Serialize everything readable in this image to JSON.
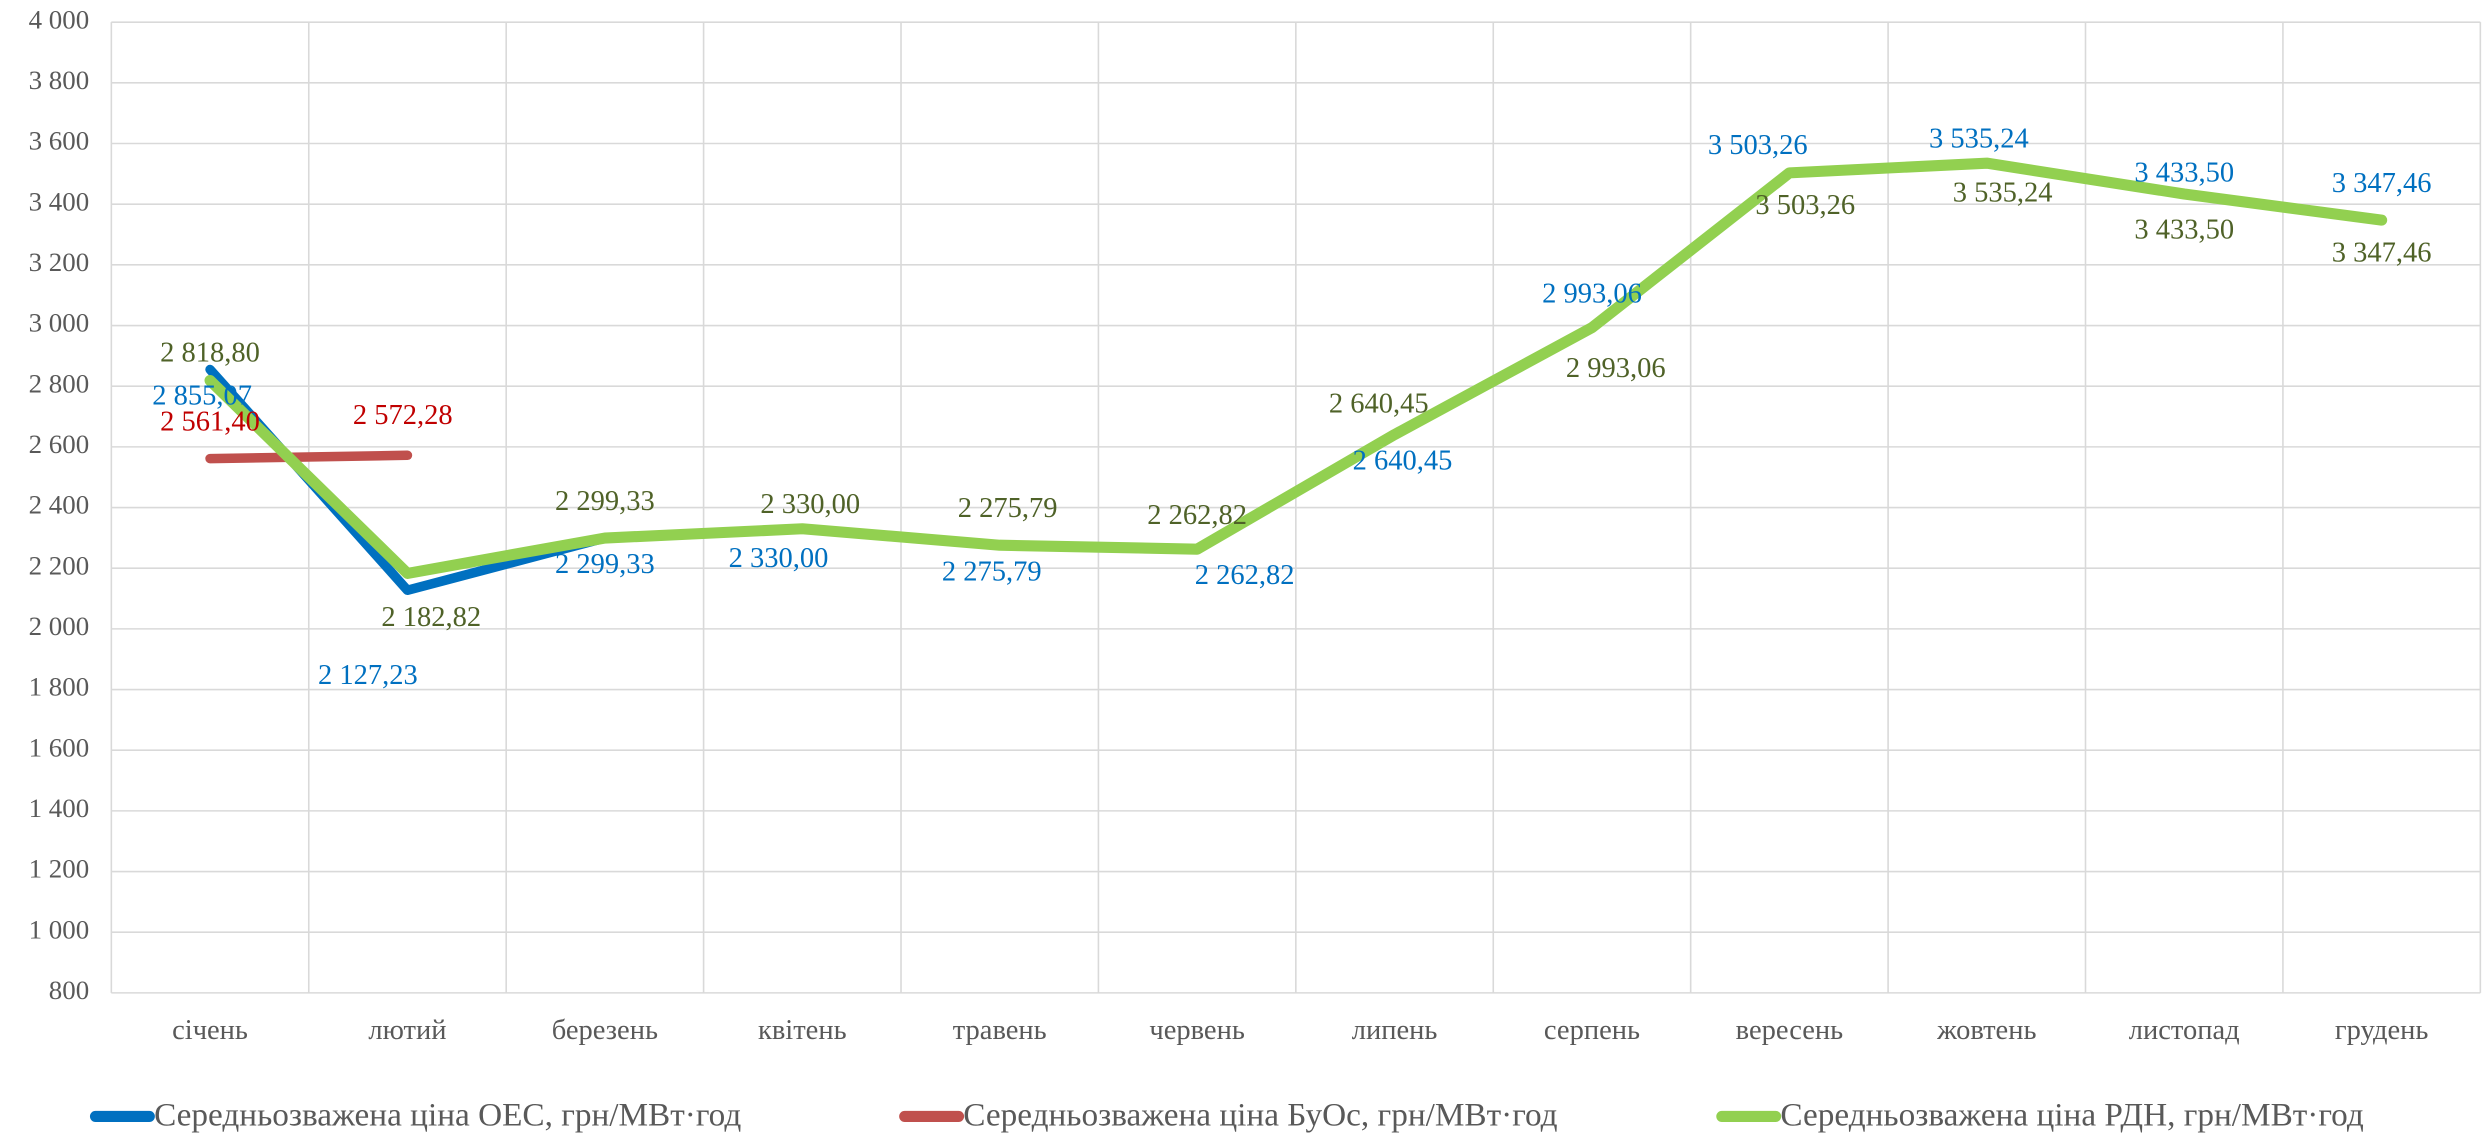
{
  "chart_data": {
    "type": "line",
    "categories": [
      "січень",
      "лютий",
      "березень",
      "квітень",
      "травень",
      "червень",
      "липень",
      "серпень",
      "вересень",
      "жовтень",
      "листопад",
      "грудень"
    ],
    "series": [
      {
        "name": "Середньозважена ціна ОЕС, грн/МВт·год",
        "color": "#0070c0",
        "values": [
          2855.07,
          2127.23,
          2299.33,
          2330.0,
          2275.79,
          2262.82,
          2640.45,
          2993.06,
          3503.26,
          3535.24,
          3433.5,
          3347.46
        ],
        "value_labels": [
          "2 855,07",
          "2 127,23",
          "2 299,33",
          "2 330,00",
          "2 275,79",
          "2 262,82",
          "2 640,45",
          "2 993,06",
          "3 503,26",
          "3 535,24",
          "3 433,50",
          "3 347,46"
        ]
      },
      {
        "name": "Середньозважена ціна БуОс, грн/МВт·год",
        "color": "#c0504d",
        "values": [
          2561.4,
          2572.28,
          null,
          null,
          null,
          null,
          null,
          null,
          null,
          null,
          null,
          null
        ],
        "value_labels": [
          "2 561,40",
          "2 572,28",
          null,
          null,
          null,
          null,
          null,
          null,
          null,
          null,
          null,
          null
        ]
      },
      {
        "name": "Середньозважена ціна РДН, грн/МВт·год",
        "color": "#92d050",
        "values": [
          2818.8,
          2182.82,
          2299.33,
          2330.0,
          2275.79,
          2262.82,
          2640.45,
          2993.06,
          3503.26,
          3535.24,
          3433.5,
          3347.46
        ],
        "value_labels": [
          "2 818,80",
          "2 182,82",
          "2 299,33",
          "2 330,00",
          "2 275,79",
          "2 262,82",
          "2 640,45",
          "2 993,06",
          "3 503,26",
          "3 535,24",
          "3 433,50",
          "3 347,46"
        ]
      }
    ],
    "ylim": [
      800,
      4000
    ],
    "yticks": [
      800,
      {
        "value": 1000,
        "label": "1 000"
      },
      {
        "value": 1200,
        "label": "1 200"
      },
      {
        "value": 1400,
        "label": "1 400"
      },
      {
        "value": 1600,
        "label": "1 600"
      },
      {
        "value": 1800,
        "label": "1 800"
      },
      {
        "value": 2000,
        "label": "2 000"
      },
      {
        "value": 2200,
        "label": "2 200"
      },
      {
        "value": 2400,
        "label": "2 400"
      },
      {
        "value": 2600,
        "label": "2 600"
      },
      {
        "value": 2800,
        "label": "2 800"
      },
      {
        "value": 3000,
        "label": "3 000"
      },
      {
        "value": 3200,
        "label": "3 200"
      },
      {
        "value": 3400,
        "label": "3 400"
      },
      {
        "value": 3600,
        "label": "3 600"
      },
      {
        "value": 3800,
        "label": "3 800"
      },
      {
        "value": 4000,
        "label": "4 000"
      }
    ],
    "grid": true,
    "legend": "bottom"
  }
}
